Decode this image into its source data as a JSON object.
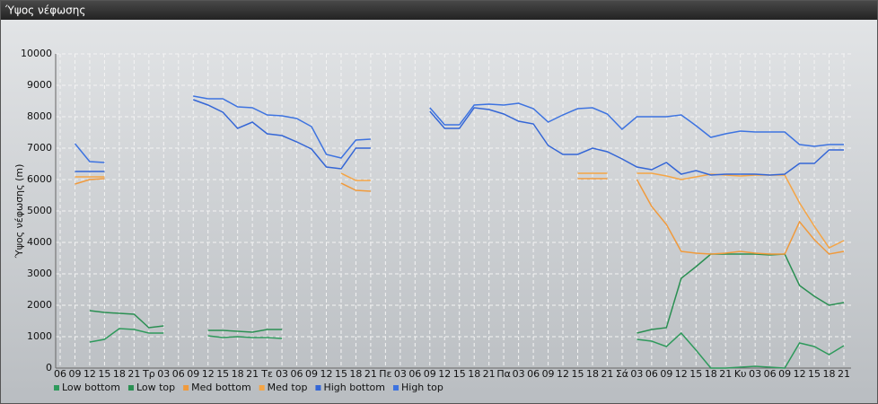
{
  "chart_data": {
    "type": "line",
    "title": "Ύψος νέφωσης",
    "ylabel": "Ύψος νέφωσης (m)",
    "categories": [
      "06",
      "09",
      "12",
      "15",
      "18",
      "21",
      "Τρ",
      "03",
      "06",
      "09",
      "12",
      "15",
      "18",
      "21",
      "Τε",
      "03",
      "06",
      "09",
      "12",
      "15",
      "18",
      "21",
      "Πε",
      "03",
      "06",
      "09",
      "12",
      "15",
      "18",
      "21",
      "Πα",
      "03",
      "06",
      "09",
      "12",
      "15",
      "18",
      "21",
      "Σά",
      "03",
      "06",
      "09",
      "12",
      "15",
      "18",
      "21",
      "Κυ",
      "03",
      "06",
      "09",
      "12",
      "15",
      "18",
      "21"
    ],
    "ylim": [
      0,
      10000
    ],
    "yticks": [
      0,
      1000,
      2000,
      3000,
      4000,
      5000,
      6000,
      7000,
      8000,
      9000,
      10000
    ],
    "grid": true,
    "legend": "bottom-left",
    "series": [
      {
        "name": "Low bottom",
        "color": "#2f9a5c",
        "values": [
          null,
          null,
          829,
          914,
          1257,
          1229,
          1114,
          1114,
          null,
          null,
          1029,
          971,
          1000,
          971,
          971,
          943,
          null,
          null,
          null,
          null,
          null,
          null,
          null,
          null,
          null,
          null,
          null,
          null,
          null,
          null,
          null,
          null,
          null,
          null,
          null,
          null,
          null,
          null,
          null,
          914,
          857,
          686,
          1114,
          571,
          0,
          0,
          29,
          57,
          29,
          0,
          800,
          686,
          429,
          714
        ]
      },
      {
        "name": "Low top",
        "color": "#2a8f52",
        "values": [
          null,
          null,
          1829,
          1771,
          1743,
          1714,
          1286,
          1343,
          null,
          null,
          1200,
          1200,
          1171,
          1143,
          1229,
          1229,
          null,
          null,
          null,
          null,
          null,
          null,
          null,
          null,
          null,
          null,
          null,
          null,
          null,
          null,
          null,
          null,
          null,
          null,
          null,
          null,
          null,
          null,
          null,
          1114,
          1229,
          1286,
          2857,
          3229,
          3629,
          3629,
          3629,
          3629,
          3600,
          3629,
          2629,
          2286,
          2000,
          2086
        ]
      },
      {
        "name": "Med bottom",
        "color": "#f09a3c",
        "values": [
          null,
          5857,
          6000,
          6029,
          null,
          null,
          null,
          null,
          null,
          null,
          null,
          null,
          null,
          null,
          null,
          null,
          null,
          null,
          null,
          5886,
          5657,
          5629,
          null,
          null,
          null,
          null,
          null,
          null,
          null,
          null,
          null,
          null,
          null,
          null,
          null,
          6029,
          6029,
          6029,
          null,
          6000,
          5143,
          4571,
          3714,
          3657,
          3629,
          3657,
          3714,
          3657,
          3629,
          3629,
          4657,
          4086,
          3629,
          3714
        ]
      },
      {
        "name": "Med top",
        "color": "#f5a545",
        "values": [
          null,
          6086,
          6086,
          6086,
          null,
          null,
          null,
          null,
          null,
          null,
          null,
          null,
          null,
          null,
          null,
          null,
          null,
          null,
          null,
          6200,
          5971,
          5971,
          null,
          null,
          null,
          null,
          null,
          null,
          null,
          null,
          null,
          null,
          null,
          null,
          null,
          6200,
          6200,
          6200,
          null,
          6200,
          6200,
          6114,
          6000,
          6086,
          6171,
          6143,
          6114,
          6143,
          6143,
          6143,
          5257,
          4514,
          3829,
          4057
        ]
      },
      {
        "name": "High bottom",
        "color": "#3466d6",
        "values": [
          null,
          6257,
          6257,
          6257,
          null,
          null,
          null,
          null,
          null,
          8543,
          8371,
          8143,
          7629,
          7829,
          7457,
          7400,
          7200,
          6971,
          6400,
          6343,
          7000,
          7000,
          null,
          null,
          null,
          8171,
          7629,
          7629,
          8286,
          8229,
          8086,
          7857,
          7771,
          7086,
          6800,
          6800,
          7000,
          6886,
          6657,
          6400,
          6314,
          6543,
          6171,
          6286,
          6143,
          6171,
          6171,
          6171,
          6143,
          6171,
          6514,
          6514,
          6943,
          6943
        ]
      },
      {
        "name": "High top",
        "color": "#3d73e0",
        "values": [
          null,
          7143,
          6571,
          6543,
          null,
          null,
          null,
          null,
          null,
          8657,
          8571,
          8571,
          8314,
          8286,
          8057,
          8029,
          7943,
          7686,
          6800,
          6686,
          7257,
          7286,
          null,
          null,
          null,
          8286,
          7743,
          7743,
          8371,
          8400,
          8371,
          8429,
          8257,
          7829,
          8057,
          8257,
          8286,
          8086,
          7600,
          8000,
          8000,
          8000,
          8057,
          7714,
          7343,
          7457,
          7543,
          7514,
          7514,
          7514,
          7114,
          7057,
          7114,
          7114
        ]
      }
    ]
  }
}
